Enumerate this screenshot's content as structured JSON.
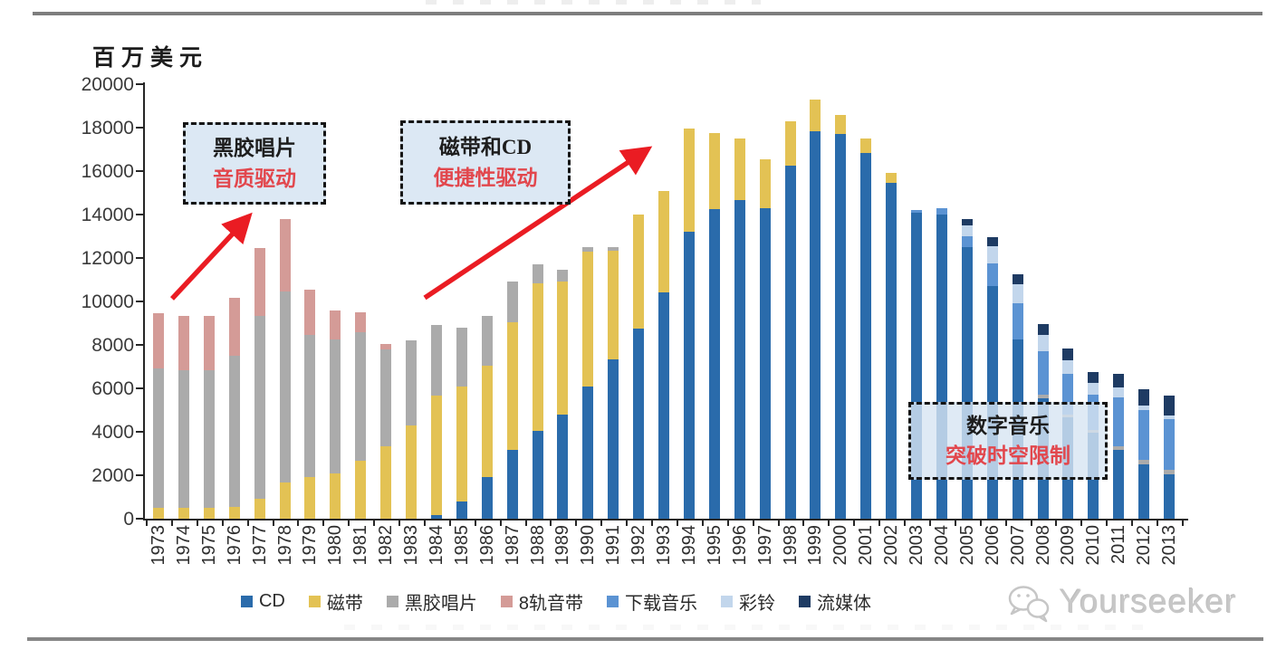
{
  "page": {
    "unit_label": "百万美元",
    "watermark_text": "Yourseeker",
    "watermark_icon": "wechat-icon"
  },
  "annotations": [
    {
      "title": "黑胶唱片",
      "subtitle": "音质驱动"
    },
    {
      "title": "磁带和CD",
      "subtitle": "便捷性驱动"
    },
    {
      "title": "数字音乐",
      "subtitle": "突破时空限制"
    }
  ],
  "colors": {
    "arrow_red": "#ea1c23",
    "callout_text_red": "#e2474d",
    "axis": "#262626"
  },
  "chart_data": {
    "type": "bar",
    "stacked": true,
    "title": "",
    "xlabel": "",
    "ylabel": "百万美元",
    "ylim": [
      0,
      20000
    ],
    "ytick_step": 2000,
    "grid": false,
    "legend_position": "bottom",
    "categories": [
      "1973",
      "1974",
      "1975",
      "1976",
      "1977",
      "1978",
      "1979",
      "1980",
      "1981",
      "1982",
      "1983",
      "1984",
      "1985",
      "1986",
      "1987",
      "1988",
      "1989",
      "1990",
      "1991",
      "1992",
      "1993",
      "1994",
      "1995",
      "1996",
      "1997",
      "1998",
      "1999",
      "2000",
      "2001",
      "2002",
      "2003",
      "2004",
      "2005",
      "2006",
      "2007",
      "2008",
      "2009",
      "2010",
      "2011",
      "2012",
      "2013"
    ],
    "series": [
      {
        "name": "CD",
        "color": "#2a6bab",
        "values": [
          0,
          0,
          0,
          0,
          0,
          0,
          0,
          0,
          0,
          0,
          0,
          150,
          800,
          1900,
          3150,
          4050,
          4800,
          6100,
          7350,
          8750,
          10400,
          13200,
          14250,
          14650,
          14300,
          16250,
          17850,
          17700,
          16850,
          15450,
          14100,
          14000,
          12500,
          10700,
          8250,
          5550,
          4650,
          3950,
          3150,
          2500,
          2050
        ]
      },
      {
        "name": "磁带",
        "color": "#e3c254",
        "values": [
          500,
          500,
          500,
          550,
          900,
          1650,
          1900,
          2100,
          2650,
          3350,
          4300,
          5500,
          5300,
          5150,
          5900,
          6800,
          6100,
          6200,
          5000,
          5250,
          4700,
          4750,
          3500,
          2850,
          2250,
          2050,
          1450,
          900,
          650,
          450,
          0,
          0,
          0,
          0,
          0,
          0,
          0,
          0,
          0,
          0,
          0
        ]
      },
      {
        "name": "黑胶唱片",
        "color": "#ababab",
        "values": [
          6400,
          6350,
          6350,
          6950,
          8450,
          8800,
          6550,
          6150,
          5950,
          4450,
          3900,
          3250,
          2700,
          2300,
          1850,
          850,
          550,
          200,
          150,
          0,
          0,
          0,
          0,
          0,
          0,
          0,
          0,
          0,
          0,
          0,
          0,
          0,
          0,
          0,
          0,
          150,
          150,
          150,
          200,
          200,
          200
        ]
      },
      {
        "name": "8轨音带",
        "color": "#d49b97",
        "values": [
          2550,
          2500,
          2500,
          2650,
          3100,
          3350,
          2100,
          1350,
          900,
          250,
          0,
          0,
          0,
          0,
          0,
          0,
          0,
          0,
          0,
          0,
          0,
          0,
          0,
          0,
          0,
          0,
          0,
          0,
          0,
          0,
          0,
          0,
          0,
          0,
          0,
          0,
          0,
          0,
          0,
          0,
          0
        ]
      },
      {
        "name": "下载音乐",
        "color": "#5b93d3",
        "values": [
          0,
          0,
          0,
          0,
          0,
          0,
          0,
          0,
          0,
          0,
          0,
          0,
          0,
          0,
          0,
          0,
          0,
          0,
          0,
          0,
          0,
          0,
          0,
          0,
          0,
          0,
          0,
          0,
          0,
          0,
          100,
          300,
          500,
          1050,
          1650,
          2000,
          1850,
          1600,
          2250,
          2300,
          2350
        ]
      },
      {
        "name": "彩铃",
        "color": "#c2d6ec",
        "values": [
          0,
          0,
          0,
          0,
          0,
          0,
          0,
          0,
          0,
          0,
          0,
          0,
          0,
          0,
          0,
          0,
          0,
          0,
          0,
          0,
          0,
          0,
          0,
          0,
          0,
          0,
          0,
          0,
          0,
          0,
          0,
          0,
          500,
          800,
          900,
          750,
          650,
          550,
          450,
          200,
          150
        ]
      },
      {
        "name": "流媒体",
        "color": "#1e3b63",
        "values": [
          0,
          0,
          0,
          0,
          0,
          0,
          0,
          0,
          0,
          0,
          0,
          0,
          0,
          0,
          0,
          0,
          0,
          0,
          0,
          0,
          0,
          0,
          0,
          0,
          0,
          0,
          0,
          0,
          0,
          0,
          0,
          0,
          300,
          400,
          450,
          500,
          550,
          500,
          600,
          750,
          900
        ]
      }
    ]
  }
}
